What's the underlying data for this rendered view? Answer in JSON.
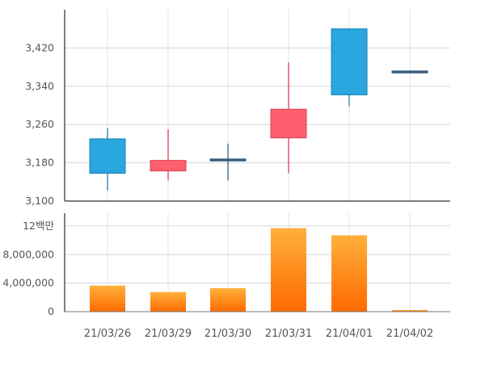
{
  "chart_data": [
    {
      "type": "candlestick",
      "categories": [
        "21/03/26",
        "21/03/29",
        "21/03/30",
        "21/03/31",
        "21/04/01",
        "21/04/02"
      ],
      "series": [
        {
          "open": 3230,
          "close": 3158,
          "high": 3252,
          "low": 3122
        },
        {
          "open": 3163,
          "close": 3185,
          "high": 3250,
          "low": 3143
        },
        {
          "open": 3186,
          "close": 3188,
          "high": 3220,
          "low": 3143
        },
        {
          "open": 3232,
          "close": 3292,
          "high": 3390,
          "low": 3158
        },
        {
          "open": 3460,
          "close": 3322,
          "high": 3460,
          "low": 3298
        },
        {
          "open": 3371,
          "close": 3372,
          "high": 3372,
          "low": 3371
        }
      ],
      "y_ticks": [
        "3,100",
        "3,180",
        "3,260",
        "3,340",
        "3,420"
      ],
      "ylim": [
        3100,
        3500
      ],
      "grid": true,
      "colors": {
        "up": "#fd5f6e",
        "up_stroke": "#d94050",
        "down": "#2aa6e0",
        "down_stroke": "#1b7fb8",
        "flat": "#3a5f80"
      }
    },
    {
      "type": "bar",
      "categories": [
        "21/03/26",
        "21/03/29",
        "21/03/30",
        "21/03/31",
        "21/04/01",
        "21/04/02"
      ],
      "values": [
        3650000,
        2750000,
        3300000,
        11700000,
        10700000,
        200000
      ],
      "y_ticks": [
        "0",
        "4,000,000",
        "8,000,000",
        "12백만"
      ],
      "ylim": [
        0,
        13800000
      ],
      "grid": true,
      "colors": {
        "bar_top": "#ffb03b",
        "bar_bottom": "#ff6a00"
      }
    }
  ]
}
